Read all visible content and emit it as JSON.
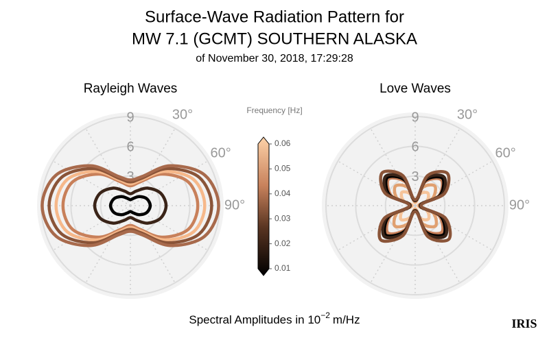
{
  "header": {
    "title": "Surface-Wave Radiation Pattern for",
    "title2": "MW 7.1 (GCMT) SOUTHERN ALASKA",
    "subtitle": "of November 30, 2018, 17:29:28"
  },
  "chart_data": [
    {
      "type": "polar",
      "title": "Rayleigh Waves",
      "rlim": [
        0,
        9
      ],
      "rticks": [
        3,
        6,
        9
      ],
      "thetaticks": [
        {
          "value": 30,
          "label": "30°"
        },
        {
          "value": 60,
          "label": "60°"
        },
        {
          "value": 90,
          "label": "90°"
        }
      ],
      "theta": [
        0,
        22.5,
        45,
        67.5,
        90,
        112.5,
        135,
        157.5,
        180,
        202.5,
        225,
        247.5,
        270,
        292.5,
        315,
        337.5
      ],
      "series": [
        {
          "color": "#000000",
          "r": [
            0.6,
            0.8,
            1.3,
            1.8,
            2.0,
            1.8,
            1.3,
            0.8,
            0.6,
            0.8,
            1.3,
            1.8,
            2.0,
            1.8,
            1.3,
            0.8
          ]
        },
        {
          "color": "#3a2418",
          "r": [
            1.2,
            1.6,
            2.5,
            3.3,
            3.6,
            3.3,
            2.5,
            1.6,
            1.2,
            1.6,
            2.5,
            3.3,
            3.6,
            3.3,
            2.5,
            1.6
          ]
        },
        {
          "color": "#c8805a",
          "r": [
            2.0,
            2.6,
            4.5,
            6.3,
            6.8,
            6.3,
            4.5,
            2.6,
            2.0,
            2.6,
            4.5,
            6.3,
            6.8,
            6.3,
            4.5,
            2.6
          ]
        },
        {
          "color": "#f6b88a",
          "r": [
            2.2,
            2.8,
            4.9,
            6.9,
            7.5,
            6.9,
            4.9,
            2.8,
            2.2,
            2.8,
            4.9,
            6.9,
            7.5,
            6.9,
            4.9,
            2.8
          ]
        },
        {
          "color": "#8a5438",
          "r": [
            2.4,
            3.0,
            5.3,
            7.5,
            8.2,
            7.5,
            5.3,
            3.0,
            2.4,
            3.0,
            5.3,
            7.5,
            8.2,
            7.5,
            5.3,
            3.0
          ]
        },
        {
          "color": "#a86a4c",
          "r": [
            2.6,
            3.2,
            5.7,
            8.1,
            8.9,
            8.1,
            5.7,
            3.2,
            2.6,
            3.2,
            5.7,
            8.1,
            8.9,
            8.1,
            5.7,
            3.2
          ]
        }
      ]
    },
    {
      "type": "polar",
      "title": "Love Waves",
      "rlim": [
        0,
        9
      ],
      "rticks": [
        3,
        6,
        9
      ],
      "thetaticks": [
        {
          "value": 30,
          "label": "30°"
        },
        {
          "value": 60,
          "label": "60°"
        },
        {
          "value": 90,
          "label": "90°"
        }
      ],
      "theta": [
        0,
        22.5,
        45,
        67.5,
        90,
        112.5,
        135,
        157.5,
        180,
        202.5,
        225,
        247.5,
        270,
        292.5,
        315,
        337.5
      ],
      "series": [
        {
          "color": "#f6c49a",
          "r": [
            0.3,
            1.3,
            1.8,
            1.3,
            0.3,
            1.3,
            1.9,
            1.4,
            0.3,
            1.3,
            2.0,
            1.4,
            0.3,
            1.3,
            1.9,
            1.3
          ]
        },
        {
          "color": "#e0a070",
          "r": [
            0.4,
            2.0,
            2.8,
            1.9,
            0.4,
            2.0,
            2.9,
            2.0,
            0.4,
            2.0,
            2.9,
            2.0,
            0.4,
            2.0,
            2.8,
            2.0
          ]
        },
        {
          "color": "#c8805a",
          "r": [
            0.5,
            2.6,
            3.7,
            2.6,
            0.5,
            2.6,
            3.8,
            2.7,
            0.5,
            2.6,
            3.9,
            2.7,
            0.5,
            2.6,
            3.8,
            2.6
          ]
        },
        {
          "color": "#000000",
          "r": [
            0.5,
            2.8,
            3.9,
            2.7,
            0.5,
            2.8,
            4.1,
            2.9,
            0.5,
            2.8,
            4.2,
            2.9,
            0.5,
            2.8,
            4.0,
            2.8
          ]
        },
        {
          "color": "#3a2418",
          "r": [
            0.5,
            3.0,
            4.1,
            2.9,
            0.5,
            3.0,
            4.3,
            3.1,
            0.5,
            3.0,
            4.4,
            3.1,
            0.5,
            3.0,
            4.2,
            3.0
          ]
        },
        {
          "color": "#8a5438",
          "r": [
            0.6,
            3.3,
            4.6,
            3.2,
            0.6,
            3.3,
            4.8,
            3.4,
            0.6,
            3.3,
            4.9,
            3.4,
            0.6,
            3.3,
            4.7,
            3.3
          ]
        }
      ]
    }
  ],
  "colorbar": {
    "label": "Frequency [Hz]",
    "lim": [
      0.01,
      0.06
    ],
    "ticks": [
      0.01,
      0.02,
      0.03,
      0.04,
      0.05,
      0.06
    ]
  },
  "footer": {
    "text": "Spectral Amplitudes in 10",
    "sup": "−2",
    "unit": "m/Hz",
    "logo": "IRIS"
  }
}
